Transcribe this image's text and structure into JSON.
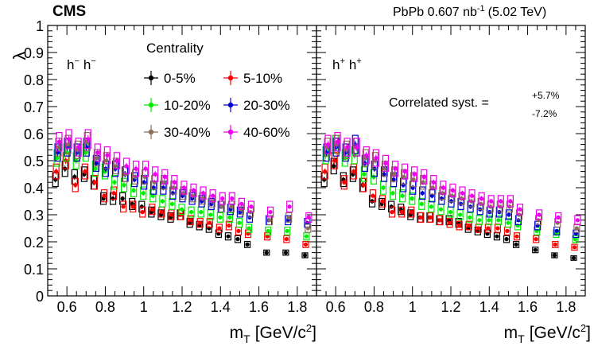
{
  "header": {
    "experiment": "CMS",
    "collision": "PbPb 0.607 nb",
    "lumi_exp": "-1",
    "energy": "(5.02 TeV)"
  },
  "chart_data": {
    "type": "scatter",
    "ylabel": "λ",
    "xlabel_main": "m",
    "xlabel_sub": "T",
    "xlabel_unit": "[GeV/c",
    "xlabel_unit_exp": "2",
    "xlabel_unit_close": "]",
    "xlim": [
      0.5,
      1.9
    ],
    "ylim": [
      0,
      1
    ],
    "xticks": [
      "0.6",
      "0.8",
      "1",
      "1.2",
      "1.4",
      "1.6",
      "1.8"
    ],
    "yticks": [
      "0",
      "0.1",
      "0.2",
      "0.3",
      "0.4",
      "0.5",
      "0.6",
      "0.7",
      "0.8",
      "0.9",
      "1"
    ],
    "legend": {
      "title": "Centrality",
      "placement": "top-left",
      "entries": [
        "0-5%",
        "5-10%",
        "10-20%",
        "20-30%",
        "30-40%",
        "40-60%"
      ]
    },
    "colors": [
      "#000000",
      "#ff0000",
      "#00ee00",
      "#0000cc",
      "#8b6e5a",
      "#ee00ee"
    ],
    "x": [
      0.55,
      0.6,
      0.65,
      0.7,
      0.75,
      0.8,
      0.85,
      0.9,
      0.95,
      1.0,
      1.05,
      1.1,
      1.15,
      1.2,
      1.25,
      1.3,
      1.35,
      1.4,
      1.45,
      1.5,
      1.55,
      1.65,
      1.75,
      1.85
    ],
    "panels": [
      {
        "label": "h",
        "label_charge": "−",
        "label2": "h",
        "label2_charge": "−",
        "series": [
          {
            "name": "0-5%",
            "values": [
              0.43,
              0.47,
              0.44,
              0.45,
              0.42,
              0.36,
              0.36,
              0.36,
              0.34,
              0.33,
              0.31,
              0.3,
              0.29,
              0.3,
              0.27,
              0.26,
              0.25,
              0.23,
              0.22,
              0.21,
              0.19,
              0.16,
              0.16,
              0.15
            ]
          },
          {
            "name": "5-10%",
            "values": [
              0.46,
              0.5,
              0.41,
              0.46,
              0.42,
              0.37,
              0.38,
              0.33,
              0.33,
              0.31,
              0.32,
              0.31,
              0.3,
              0.3,
              0.28,
              0.27,
              0.27,
              0.25,
              0.26,
              0.24,
              0.23,
              0.22,
              0.21,
              0.19
            ]
          },
          {
            "name": "10-20%",
            "values": [
              0.51,
              0.53,
              0.5,
              0.53,
              0.47,
              0.46,
              0.42,
              0.41,
              0.39,
              0.38,
              0.37,
              0.35,
              0.34,
              0.32,
              0.31,
              0.31,
              0.3,
              0.29,
              0.29,
              0.27,
              0.25,
              0.24,
              0.24,
              0.22
            ]
          },
          {
            "name": "20-30%",
            "values": [
              0.53,
              0.55,
              0.53,
              0.55,
              0.49,
              0.47,
              0.47,
              0.45,
              0.43,
              0.42,
              0.4,
              0.4,
              0.38,
              0.37,
              0.36,
              0.35,
              0.34,
              0.33,
              0.32,
              0.31,
              0.29,
              0.28,
              0.28,
              0.27
            ]
          },
          {
            "name": "30-40%",
            "values": [
              0.55,
              0.56,
              0.54,
              0.57,
              0.51,
              0.5,
              0.48,
              0.45,
              0.44,
              0.44,
              0.42,
              0.42,
              0.4,
              0.38,
              0.37,
              0.36,
              0.35,
              0.33,
              0.33,
              0.32,
              0.31,
              0.28,
              0.29,
              0.25
            ]
          },
          {
            "name": "40-60%",
            "values": [
              0.57,
              0.58,
              0.55,
              0.58,
              0.53,
              0.52,
              0.5,
              0.48,
              0.47,
              0.47,
              0.45,
              0.44,
              0.42,
              0.4,
              0.39,
              0.38,
              0.37,
              0.36,
              0.36,
              0.34,
              0.33,
              0.31,
              0.33,
              0.29
            ]
          }
        ]
      },
      {
        "label": "h",
        "label_charge": "+",
        "label2": "h",
        "label2_charge": "+",
        "annotation_text": "Correlated syst. =",
        "annotation_plus": "+5.7%",
        "annotation_minus": "-7.2%",
        "series": [
          {
            "name": "0-5%",
            "values": [
              0.43,
              0.48,
              0.43,
              0.45,
              0.41,
              0.35,
              0.34,
              0.33,
              0.32,
              0.3,
              0.29,
              0.29,
              0.28,
              0.28,
              0.27,
              0.25,
              0.24,
              0.23,
              0.22,
              0.21,
              0.19,
              0.17,
              0.15,
              0.14
            ]
          },
          {
            "name": "5-10%",
            "values": [
              0.46,
              0.5,
              0.42,
              0.46,
              0.41,
              0.37,
              0.35,
              0.31,
              0.31,
              0.31,
              0.29,
              0.29,
              0.28,
              0.27,
              0.26,
              0.26,
              0.25,
              0.25,
              0.25,
              0.24,
              0.22,
              0.21,
              0.19,
              0.18
            ]
          },
          {
            "name": "10-20%",
            "values": [
              0.52,
              0.56,
              0.51,
              0.52,
              0.45,
              0.44,
              0.4,
              0.38,
              0.37,
              0.36,
              0.34,
              0.33,
              0.32,
              0.31,
              0.3,
              0.29,
              0.28,
              0.28,
              0.28,
              0.27,
              0.26,
              0.24,
              0.23,
              0.21
            ]
          },
          {
            "name": "20-30%",
            "values": [
              0.53,
              0.55,
              0.53,
              0.56,
              0.49,
              0.47,
              0.45,
              0.43,
              0.41,
              0.4,
              0.38,
              0.37,
              0.36,
              0.35,
              0.34,
              0.33,
              0.32,
              0.31,
              0.31,
              0.3,
              0.28,
              0.26,
              0.24,
              0.23
            ]
          },
          {
            "name": "30-40%",
            "values": [
              0.55,
              0.56,
              0.54,
              0.55,
              0.51,
              0.5,
              0.47,
              0.45,
              0.44,
              0.43,
              0.42,
              0.4,
              0.38,
              0.37,
              0.36,
              0.35,
              0.34,
              0.33,
              0.33,
              0.33,
              0.3,
              0.28,
              0.27,
              0.25
            ]
          },
          {
            "name": "40-60%",
            "values": [
              0.56,
              0.57,
              0.55,
              0.55,
              0.52,
              0.51,
              0.49,
              0.47,
              0.46,
              0.45,
              0.44,
              0.42,
              0.4,
              0.39,
              0.38,
              0.37,
              0.36,
              0.35,
              0.35,
              0.35,
              0.32,
              0.3,
              0.29,
              0.28
            ]
          }
        ]
      }
    ]
  }
}
